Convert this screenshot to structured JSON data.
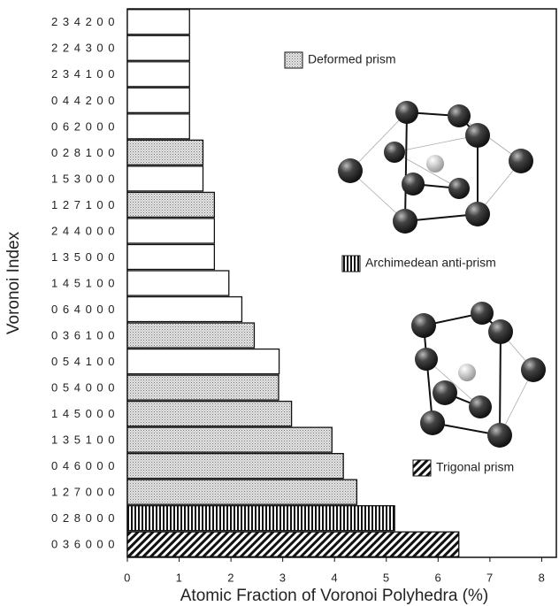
{
  "chart_data": {
    "type": "bar",
    "orientation": "horizontal",
    "x_label": "Atomic Fraction of Voronoi Polyhedra (%)",
    "y_label": "Voronoi Index",
    "categories": [
      "2 3 4 2 0 0",
      "2 2 4 3 0 0",
      "2 3 4 1 0 0",
      "0 4 4 2 0 0",
      "0 6 2 0 0 0",
      "0 2 8 1 0 0",
      "1 5 3 0 0 0",
      "1 2 7 1 0 0",
      "2 4 4 0 0 0",
      "1 3 5 0 0 0",
      "1 4 5 1 0 0",
      "0 6 4 0 0 0",
      "0 3 6 1 0 0",
      "0 5 4 1 0 0",
      "0 5 4 0 0 0",
      "1 4 5 0 0 0",
      "1 3 5 1 0 0",
      "0 4 6 0 0 0",
      "1 2 7 0 0 0",
      "0 2 8 0 0 0",
      "0 3 6 0 0 0"
    ],
    "values": [
      1.2,
      1.2,
      1.2,
      1.2,
      1.2,
      1.46,
      1.46,
      1.68,
      1.68,
      1.68,
      1.96,
      2.21,
      2.45,
      2.93,
      2.92,
      3.17,
      3.95,
      4.17,
      4.43,
      5.16,
      6.4
    ],
    "fills": [
      "white",
      "white",
      "white",
      "white",
      "white",
      "dots",
      "white",
      "dots",
      "white",
      "white",
      "white",
      "white",
      "dots",
      "white",
      "dots",
      "dots",
      "dots",
      "dots",
      "dots",
      "vertical",
      "diagonal"
    ],
    "legend": [
      {
        "name": "Deformed prism",
        "fill": "dots"
      },
      {
        "name": "Archimedean anti-prism",
        "fill": "vertical"
      },
      {
        "name": "Trigonal prism",
        "fill": "diagonal"
      }
    ],
    "xlim": [
      0,
      8.3
    ],
    "xticks": [
      0,
      1,
      2,
      3,
      4,
      5,
      6,
      7,
      8
    ]
  }
}
